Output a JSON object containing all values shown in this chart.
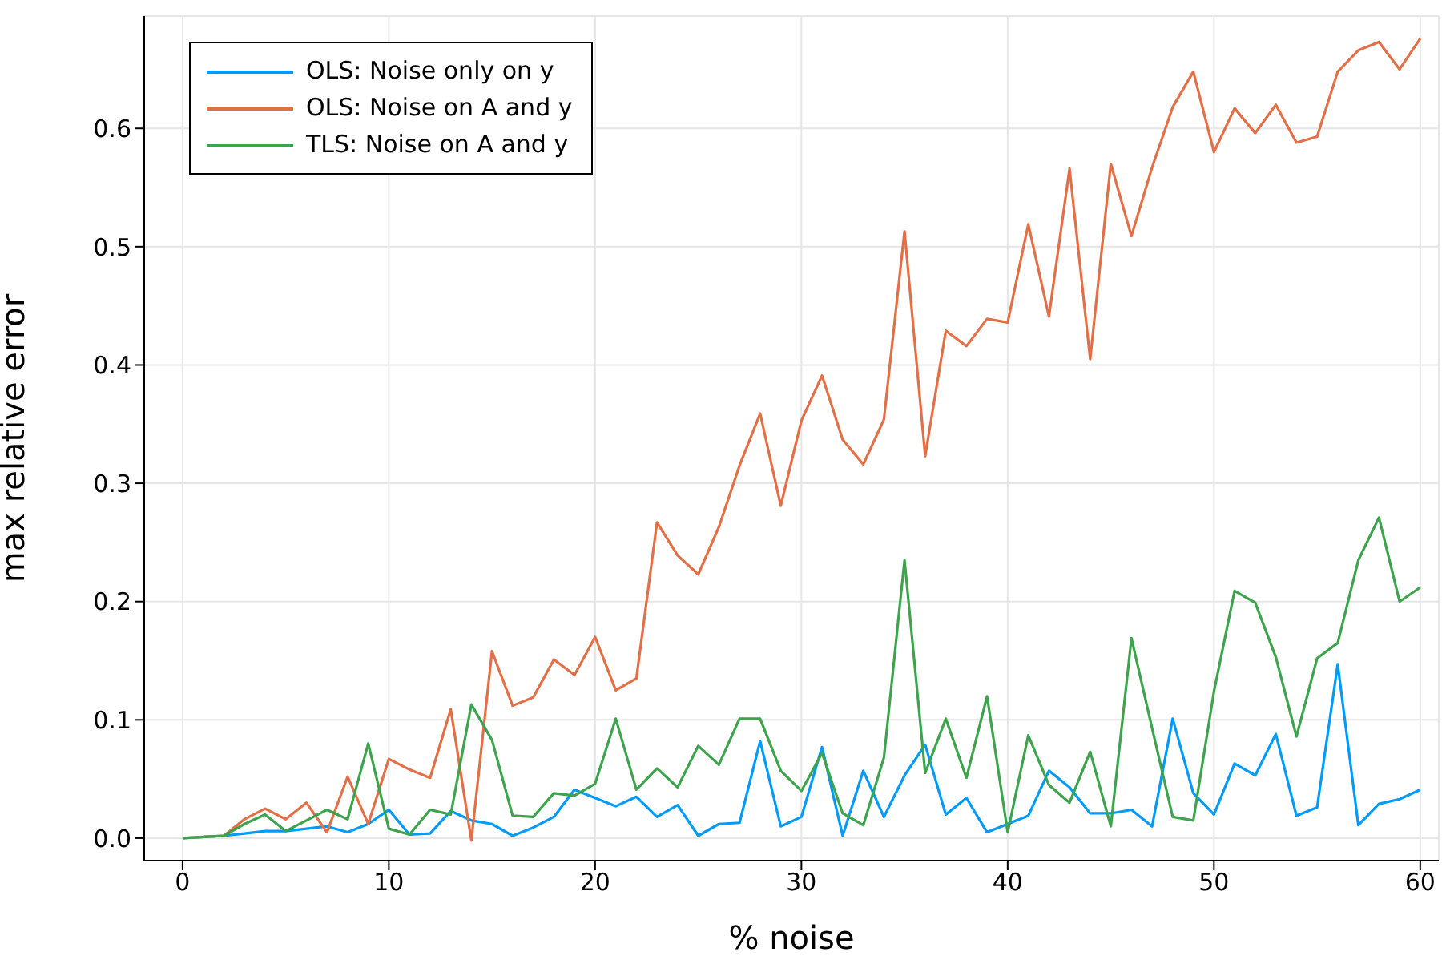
{
  "chart_data": {
    "type": "line",
    "xlabel": "% noise",
    "ylabel": "max relative error",
    "x": [
      0,
      1,
      2,
      3,
      4,
      5,
      6,
      7,
      8,
      9,
      10,
      11,
      12,
      13,
      14,
      15,
      16,
      17,
      18,
      19,
      20,
      21,
      22,
      23,
      24,
      25,
      26,
      27,
      28,
      29,
      30,
      31,
      32,
      33,
      34,
      35,
      36,
      37,
      38,
      39,
      40,
      41,
      42,
      43,
      44,
      45,
      46,
      47,
      48,
      49,
      50,
      51,
      52,
      53,
      54,
      55,
      56,
      57,
      58,
      59,
      60
    ],
    "series": [
      {
        "name": "OLS: Noise only on y",
        "color": "#009af9",
        "values": [
          0,
          0.001,
          0.002,
          0.004,
          0.006,
          0.006,
          0.008,
          0.01,
          0.005,
          0.012,
          0.024,
          0.003,
          0.004,
          0.023,
          0.015,
          0.012,
          0.002,
          0.009,
          0.018,
          0.041,
          0.034,
          0.027,
          0.035,
          0.018,
          0.028,
          0.002,
          0.012,
          0.013,
          0.082,
          0.01,
          0.018,
          0.077,
          0.002,
          0.057,
          0.018,
          0.053,
          0.079,
          0.02,
          0.034,
          0.005,
          0.012,
          0.019,
          0.057,
          0.043,
          0.021,
          0.021,
          0.024,
          0.01,
          0.101,
          0.038,
          0.02,
          0.063,
          0.053,
          0.088,
          0.019,
          0.026,
          0.147,
          0.011,
          0.029,
          0.033,
          0.041
        ]
      },
      {
        "name": "OLS: Noise on A and y",
        "color": "#e26f46",
        "values": [
          0,
          0.001,
          0.002,
          0.016,
          0.025,
          0.016,
          0.03,
          0.005,
          0.052,
          0.012,
          0.067,
          0.058,
          0.051,
          0.109,
          -0.002,
          0.158,
          0.112,
          0.119,
          0.151,
          0.138,
          0.17,
          0.125,
          0.135,
          0.267,
          0.239,
          0.223,
          0.263,
          0.315,
          0.359,
          0.281,
          0.353,
          0.391,
          0.337,
          0.316,
          0.354,
          0.513,
          0.323,
          0.429,
          0.416,
          0.439,
          0.436,
          0.519,
          0.441,
          0.566,
          0.405,
          0.57,
          0.509,
          0.567,
          0.618,
          0.648,
          0.58,
          0.617,
          0.596,
          0.62,
          0.588,
          0.593,
          0.648,
          0.666,
          0.673,
          0.65,
          0.676
        ]
      },
      {
        "name": "TLS: Noise on A and y",
        "color": "#3da44d",
        "values": [
          0,
          0.001,
          0.002,
          0.012,
          0.02,
          0.006,
          0.015,
          0.024,
          0.016,
          0.08,
          0.008,
          0.003,
          0.024,
          0.02,
          0.113,
          0.083,
          0.019,
          0.018,
          0.038,
          0.036,
          0.046,
          0.101,
          0.041,
          0.059,
          0.043,
          0.078,
          0.062,
          0.101,
          0.101,
          0.057,
          0.04,
          0.072,
          0.021,
          0.011,
          0.068,
          0.235,
          0.055,
          0.101,
          0.051,
          0.12,
          0.005,
          0.087,
          0.045,
          0.03,
          0.073,
          0.01,
          0.169,
          0.093,
          0.018,
          0.015,
          0.124,
          0.209,
          0.199,
          0.153,
          0.086,
          0.152,
          0.165,
          0.235,
          0.271,
          0.2,
          0.212
        ]
      }
    ],
    "xlim": [
      -1.86,
      60.9
    ],
    "xticks": [
      0,
      10,
      20,
      30,
      40,
      50,
      60
    ],
    "ylim": [
      -0.019,
      0.695
    ],
    "yticks": [
      {
        "value": 0,
        "label": "0.0"
      },
      {
        "value": 0.1,
        "label": "0.1"
      },
      {
        "value": 0.2,
        "label": "0.2"
      },
      {
        "value": 0.3,
        "label": "0.3"
      },
      {
        "value": 0.4,
        "label": "0.4"
      },
      {
        "value": 0.5,
        "label": "0.5"
      },
      {
        "value": 0.6,
        "label": "0.6"
      }
    ],
    "grid": true,
    "legend": "top left",
    "marker": "none",
    "line_style": "solid"
  }
}
